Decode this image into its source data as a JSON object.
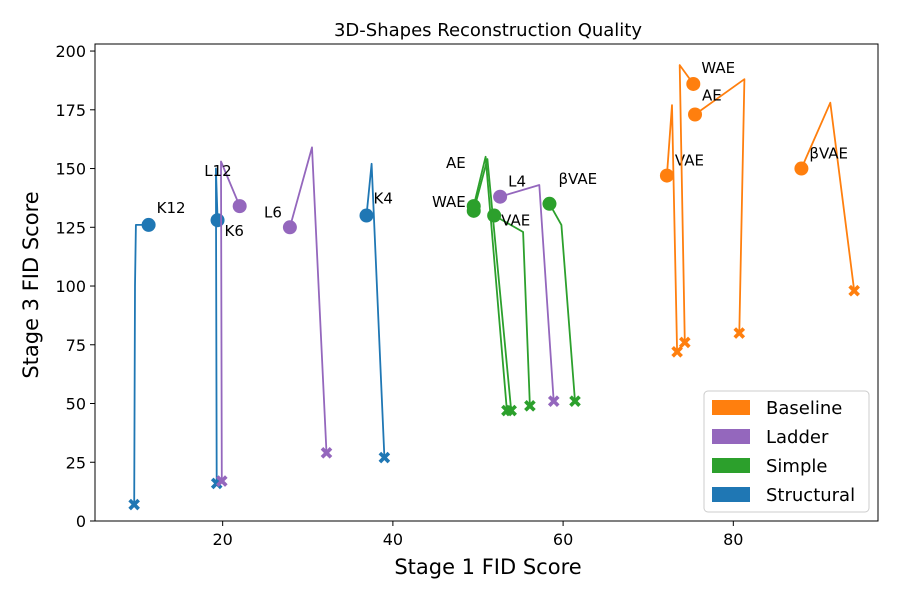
{
  "chart_data": {
    "type": "line",
    "title": "3D-Shapes Reconstruction Quality",
    "xlabel": "Stage 1 FID Score",
    "ylabel": "Stage 3 FID Score",
    "xlim": [
      5,
      97
    ],
    "ylim": [
      0,
      203
    ],
    "xticks": [
      20,
      40,
      60,
      80
    ],
    "yticks": [
      0,
      25,
      50,
      75,
      100,
      125,
      150,
      175,
      200
    ],
    "legend_position": "bottom-right",
    "colors": {
      "Baseline": "#ff7f0e",
      "Ladder": "#9467bd",
      "Simple": "#2ca02c",
      "Structural": "#1f77b4"
    },
    "legend": [
      "Baseline",
      "Ladder",
      "Simple",
      "Structural"
    ],
    "series": [
      {
        "group": "Structural",
        "label": "K12",
        "start": [
          11.3,
          126
        ],
        "path": [
          [
            11.3,
            126
          ],
          [
            9.8,
            126
          ],
          [
            9.7,
            100
          ],
          [
            9.6,
            7
          ]
        ],
        "end": [
          9.6,
          7
        ]
      },
      {
        "group": "Structural",
        "label": "K6",
        "start": [
          19.4,
          128
        ],
        "path": [
          [
            19.4,
            128
          ],
          [
            19.2,
            150
          ],
          [
            19.3,
            16
          ]
        ],
        "end": [
          19.3,
          16
        ]
      },
      {
        "group": "Structural",
        "label": "K4",
        "start": [
          36.9,
          130
        ],
        "path": [
          [
            36.9,
            130
          ],
          [
            37.5,
            152
          ],
          [
            39.0,
            27
          ]
        ],
        "end": [
          39.0,
          27
        ]
      },
      {
        "group": "Ladder",
        "label": "L12",
        "start": [
          22.0,
          134
        ],
        "path": [
          [
            22.0,
            134
          ],
          [
            19.8,
            153
          ],
          [
            19.9,
            17
          ]
        ],
        "end": [
          19.9,
          17
        ]
      },
      {
        "group": "Ladder",
        "label": "L6",
        "start": [
          27.9,
          125
        ],
        "path": [
          [
            27.9,
            125
          ],
          [
            30.5,
            159
          ],
          [
            32.2,
            29
          ]
        ],
        "end": [
          32.2,
          29
        ]
      },
      {
        "group": "Ladder",
        "label": "L4",
        "start": [
          52.6,
          138
        ],
        "path": [
          [
            52.6,
            138
          ],
          [
            57.2,
            143
          ],
          [
            58.9,
            51
          ]
        ],
        "end": [
          58.9,
          51
        ]
      },
      {
        "group": "Simple",
        "label": "AE",
        "start": [
          49.5,
          134
        ],
        "path": [
          [
            49.5,
            134
          ],
          [
            50.9,
            155
          ],
          [
            53.4,
            47
          ]
        ],
        "end": [
          53.4,
          47
        ]
      },
      {
        "group": "Simple",
        "label": "WAE",
        "start": [
          49.5,
          132
        ],
        "path": [
          [
            49.5,
            132
          ],
          [
            51.1,
            154
          ],
          [
            53.9,
            47
          ]
        ],
        "end": [
          53.9,
          47
        ]
      },
      {
        "group": "Simple",
        "label": "VAE",
        "start": [
          51.9,
          130
        ],
        "path": [
          [
            51.9,
            130
          ],
          [
            55.3,
            123
          ],
          [
            56.1,
            49
          ]
        ],
        "end": [
          56.1,
          49
        ]
      },
      {
        "group": "Simple",
        "label": "βVAE",
        "start": [
          58.4,
          135
        ],
        "path": [
          [
            58.4,
            135
          ],
          [
            59.8,
            126
          ],
          [
            61.4,
            51
          ]
        ],
        "end": [
          61.4,
          51
        ]
      },
      {
        "group": "Baseline",
        "label": "VAE",
        "start": [
          72.2,
          147
        ],
        "path": [
          [
            72.2,
            147
          ],
          [
            72.8,
            177
          ],
          [
            73.4,
            72
          ]
        ],
        "end": [
          73.4,
          72
        ]
      },
      {
        "group": "Baseline",
        "label": "WAE",
        "start": [
          75.3,
          186
        ],
        "path": [
          [
            75.3,
            186
          ],
          [
            73.7,
            194
          ],
          [
            74.3,
            76
          ]
        ],
        "end": [
          74.3,
          76
        ]
      },
      {
        "group": "Baseline",
        "label": "AE",
        "start": [
          75.5,
          173
        ],
        "path": [
          [
            75.5,
            173
          ],
          [
            81.3,
            188
          ],
          [
            80.7,
            80
          ]
        ],
        "end": [
          80.7,
          80
        ]
      },
      {
        "group": "Baseline",
        "label": "βVAE",
        "start": [
          88.0,
          150
        ],
        "path": [
          [
            88.0,
            150
          ],
          [
            91.4,
            178
          ],
          [
            94.2,
            98
          ]
        ],
        "end": [
          94.2,
          98
        ]
      }
    ]
  }
}
